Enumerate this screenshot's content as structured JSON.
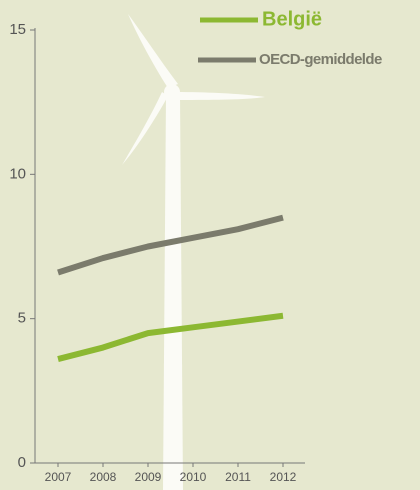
{
  "chart_data": {
    "type": "line",
    "categories": [
      "2007",
      "2008",
      "2009",
      "2010",
      "2011",
      "2012"
    ],
    "series": [
      {
        "name": "België",
        "color": "#8cb832",
        "values": [
          3.6,
          4.0,
          4.5,
          4.7,
          4.9,
          5.1
        ]
      },
      {
        "name": "OECD-gemiddelde",
        "color": "#7b7b6c",
        "values": [
          6.6,
          7.1,
          7.5,
          7.8,
          8.1,
          8.5
        ]
      }
    ],
    "ylim": [
      0,
      15
    ],
    "yticks": [
      0,
      5,
      10,
      15
    ]
  }
}
